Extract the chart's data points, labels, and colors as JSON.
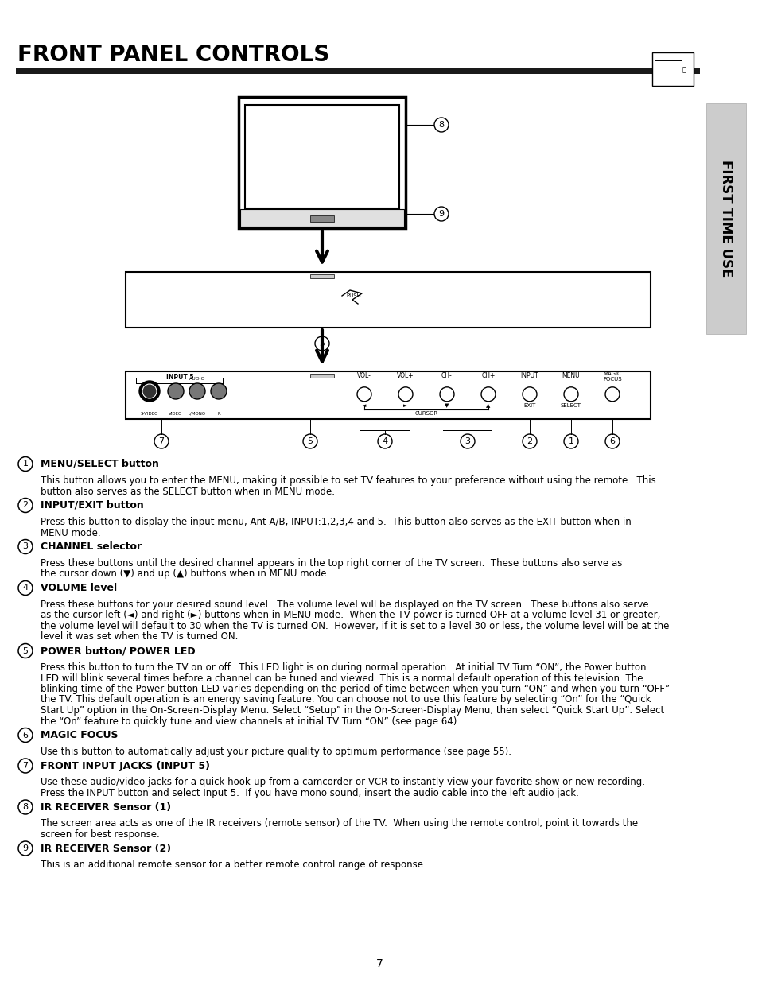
{
  "title": "FRONT PANEL CONTROLS",
  "page_number": "7",
  "sidebar_text": "FIRST TIME USE",
  "sections": [
    {
      "num": "1",
      "heading": "MENU/SELECT button",
      "body": "This button allows you to enter the MENU, making it possible to set TV features to your preference without using the remote.  This\nbutton also serves as the SELECT button when in MENU mode."
    },
    {
      "num": "2",
      "heading": "INPUT/EXIT button",
      "body": "Press this button to display the input menu, Ant A/B, INPUT:1,2,3,4 and 5.  This button also serves as the EXIT button when in\nMENU mode."
    },
    {
      "num": "3",
      "heading": "CHANNEL selector",
      "body": "Press these buttons until the desired channel appears in the top right corner of the TV screen.  These buttons also serve as\nthe cursor down (▼) and up (▲) buttons when in MENU mode."
    },
    {
      "num": "4",
      "heading": "VOLUME level",
      "body": "Press these buttons for your desired sound level.  The volume level will be displayed on the TV screen.  These buttons also serve\nas the cursor left (◄) and right (►) buttons when in MENU mode.  When the TV power is turned OFF at a volume level 31 or greater,\nthe volume level will default to 30 when the TV is turned ON.  However, if it is set to a level 30 or less, the volume level will be at the\nlevel it was set when the TV is turned ON."
    },
    {
      "num": "5",
      "heading": "POWER button/ POWER LED",
      "body": "Press this button to turn the TV on or off.  This LED light is on during normal operation.  At initial TV Turn “ON”, the Power button\nLED will blink several times before a channel can be tuned and viewed. This is a normal default operation of this television. The\nblinking time of the Power button LED varies depending on the period of time between when you turn “ON” and when you turn “OFF”\nthe TV. This default operation is an energy saving feature. You can choose not to use this feature by selecting “On” for the “Quick\nStart Up” option in the On-Screen-Display Menu. Select “Setup” in the On-Screen-Display Menu, then select “Quick Start Up”. Select\nthe “On” feature to quickly tune and view channels at initial TV Turn “ON” (see page 64)."
    },
    {
      "num": "6",
      "heading": "MAGIC FOCUS",
      "body": "Use this button to automatically adjust your picture quality to optimum performance (see page 55)."
    },
    {
      "num": "7",
      "heading": "FRONT INPUT JACKS (INPUT 5)",
      "body": "Use these audio/video jacks for a quick hook-up from a camcorder or VCR to instantly view your favorite show or new recording.\nPress the INPUT button and select Input 5.  If you have mono sound, insert the audio cable into the left audio jack."
    },
    {
      "num": "8",
      "heading": "IR RECEIVER Sensor (1)",
      "body": "The screen area acts as one of the IR receivers (remote sensor) of the TV.  When using the remote control, point it towards the\nscreen for best response."
    },
    {
      "num": "9",
      "heading": "IR RECEIVER Sensor (2)",
      "body": "This is an additional remote sensor for a better remote control range of response."
    }
  ],
  "bg_color": "#ffffff",
  "text_color": "#000000",
  "sidebar_bg": "#cccccc",
  "title_bar_color": "#1a1a1a"
}
